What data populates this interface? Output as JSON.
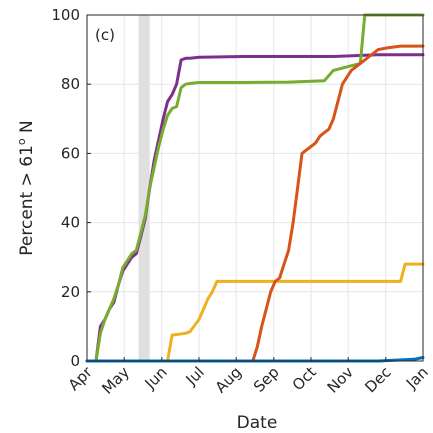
{
  "chart_data": {
    "type": "line",
    "panel_label": "(c)",
    "xlabel": "Date",
    "ylabel": "Percent > 61",
    "ylabel_sup": "o",
    "ylabel_suffix": " N",
    "x_ticks": [
      {
        "label": "Apr",
        "x": 2019.25
      },
      {
        "label": "May",
        "x": 2019.333
      },
      {
        "label": "Jun",
        "x": 2019.417
      },
      {
        "label": "Jul",
        "x": 2019.5
      },
      {
        "label": "Aug",
        "x": 2019.583
      },
      {
        "label": "Sep",
        "x": 2019.667
      },
      {
        "label": "Oct",
        "x": 2019.75
      },
      {
        "label": "Nov",
        "x": 2019.833
      },
      {
        "label": "Dec",
        "x": 2019.917
      },
      {
        "label": "Jan",
        "x": 2020.0
      }
    ],
    "y_ticks": [
      0,
      20,
      40,
      60,
      80,
      100
    ],
    "xlim": [
      2019.25,
      2020.0
    ],
    "ylim": [
      0,
      100
    ],
    "grid": true,
    "shaded_band": {
      "x0": 2019.365,
      "x1": 2019.39,
      "color": "#e0e0e0"
    },
    "series": [
      {
        "color": "#7e2f8e",
        "x": [
          2019.27,
          2019.28,
          2019.29,
          2019.3,
          2019.31,
          2019.32,
          2019.33,
          2019.34,
          2019.35,
          2019.36,
          2019.37,
          2019.38,
          2019.39,
          2019.4,
          2019.41,
          2019.42,
          2019.43,
          2019.44,
          2019.45,
          2019.46,
          2019.47,
          2019.48,
          2019.5,
          2019.6,
          2019.7,
          2019.8,
          2019.9,
          2020.0
        ],
        "y": [
          0,
          10,
          12,
          15,
          17,
          22,
          26,
          28,
          30,
          31,
          36,
          41,
          50,
          58,
          64,
          70,
          75,
          77,
          80,
          87,
          87.5,
          87.5,
          87.8,
          88,
          88,
          88,
          88.5,
          88.5
        ]
      },
      {
        "color": "#77ac30",
        "x": [
          2019.27,
          2019.28,
          2019.29,
          2019.3,
          2019.31,
          2019.32,
          2019.33,
          2019.34,
          2019.35,
          2019.36,
          2019.37,
          2019.38,
          2019.39,
          2019.4,
          2019.41,
          2019.42,
          2019.43,
          2019.44,
          2019.45,
          2019.46,
          2019.47,
          2019.48,
          2019.5,
          2019.6,
          2019.7,
          2019.78,
          2019.8,
          2019.83,
          2019.86,
          2019.87,
          2019.9,
          2019.95,
          2020.0
        ],
        "y": [
          0,
          8,
          12,
          15,
          18,
          22,
          27,
          29,
          31,
          32,
          37,
          42,
          50,
          56,
          62,
          67,
          71,
          73,
          73.5,
          79,
          80,
          80.2,
          80.5,
          80.5,
          80.6,
          81,
          84,
          85,
          86,
          100,
          100,
          100,
          100
        ]
      },
      {
        "color": "#edb120",
        "x": [
          2019.25,
          2019.29,
          2019.3,
          2019.36,
          2019.39,
          2019.42,
          2019.43,
          2019.44,
          2019.47,
          2019.48,
          2019.5,
          2019.52,
          2019.53,
          2019.54,
          2019.56,
          2019.57,
          2019.6,
          2019.7,
          2019.8,
          2019.9,
          2019.95,
          2019.96,
          2020.0
        ],
        "y": [
          0,
          0,
          0,
          0,
          0,
          0,
          0,
          7.5,
          8,
          8.5,
          12,
          18,
          20,
          23,
          23,
          23,
          23,
          23,
          23,
          23,
          23,
          28,
          28
        ]
      },
      {
        "color": "#d95319",
        "x": [
          2019.25,
          2019.4,
          2019.55,
          2019.6,
          2019.62,
          2019.63,
          2019.64,
          2019.65,
          2019.66,
          2019.67,
          2019.68,
          2019.69,
          2019.7,
          2019.71,
          2019.72,
          2019.73,
          2019.74,
          2019.75,
          2019.76,
          2019.77,
          2019.78,
          2019.79,
          2019.8,
          2019.81,
          2019.82,
          2019.83,
          2019.84,
          2019.85,
          2019.86,
          2019.87,
          2019.88,
          2019.89,
          2019.9,
          2019.92,
          2019.95,
          2019.98,
          2020.0
        ],
        "y": [
          0,
          0,
          0,
          0,
          0,
          4,
          10,
          15,
          20,
          23,
          24,
          28,
          32,
          40,
          50,
          60,
          61,
          62,
          63,
          65,
          66,
          67,
          70,
          75,
          80,
          82,
          84,
          85,
          86,
          87,
          88,
          89,
          90,
          90.5,
          91,
          91,
          91
        ]
      },
      {
        "color": "#0072bd",
        "x": [
          2019.25,
          2019.5,
          2019.7,
          2019.8,
          2019.9,
          2019.98,
          2020.0
        ],
        "y": [
          0,
          0,
          0,
          0,
          0,
          0.5,
          1
        ]
      }
    ]
  }
}
